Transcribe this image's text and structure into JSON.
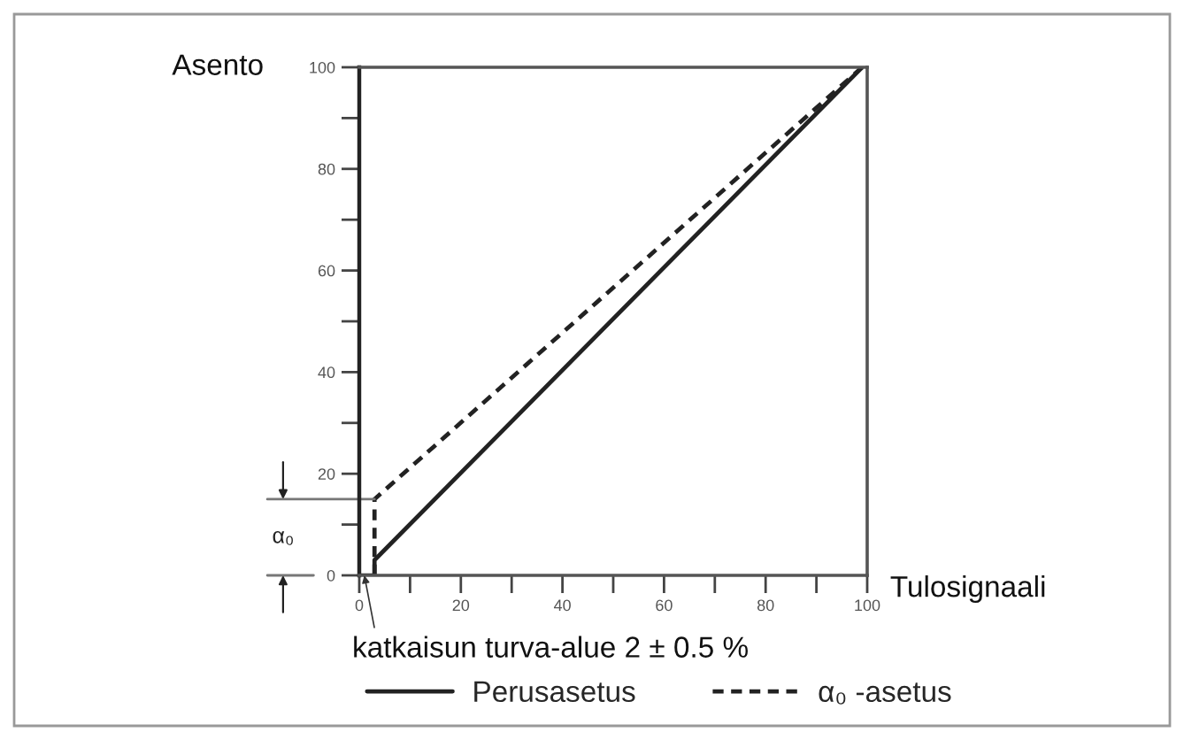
{
  "chart_data": {
    "type": "line",
    "xlabel": "Tulosignaali",
    "ylabel": "Asento",
    "xlim": [
      0,
      100
    ],
    "ylim": [
      0,
      100
    ],
    "xticks": [
      0,
      {
        "value": 10,
        "label": null
      },
      20,
      {
        "value": 30,
        "label": null
      },
      40,
      {
        "value": 50,
        "label": null
      },
      60,
      {
        "value": 70,
        "label": null
      },
      80,
      {
        "value": 90,
        "label": null
      },
      100
    ],
    "yticks": [
      0,
      {
        "value": 10,
        "label": null
      },
      20,
      {
        "value": 30,
        "label": null
      },
      40,
      {
        "value": 50,
        "label": null
      },
      60,
      {
        "value": 70,
        "label": null
      },
      80,
      {
        "value": 90,
        "label": null
      },
      100
    ],
    "series": [
      {
        "name": "Perusasetus",
        "color": "#222222",
        "line_style": "solid",
        "x": [
          0,
          3,
          3,
          99
        ],
        "values": [
          0,
          0,
          3,
          100
        ]
      },
      {
        "name": "α₀ -asetus",
        "color": "#222222",
        "line_style": "dashed",
        "x": [
          3,
          3,
          99
        ],
        "values": [
          0,
          15,
          100
        ]
      }
    ],
    "ref_lines": [
      {
        "axis": "y",
        "value": 15,
        "label": "α₀"
      }
    ],
    "annotations": [
      {
        "text": "katkaisun turva-alue 2 ± 0.5 %",
        "x": 1,
        "y": 0
      }
    ],
    "legend": "bottom"
  }
}
